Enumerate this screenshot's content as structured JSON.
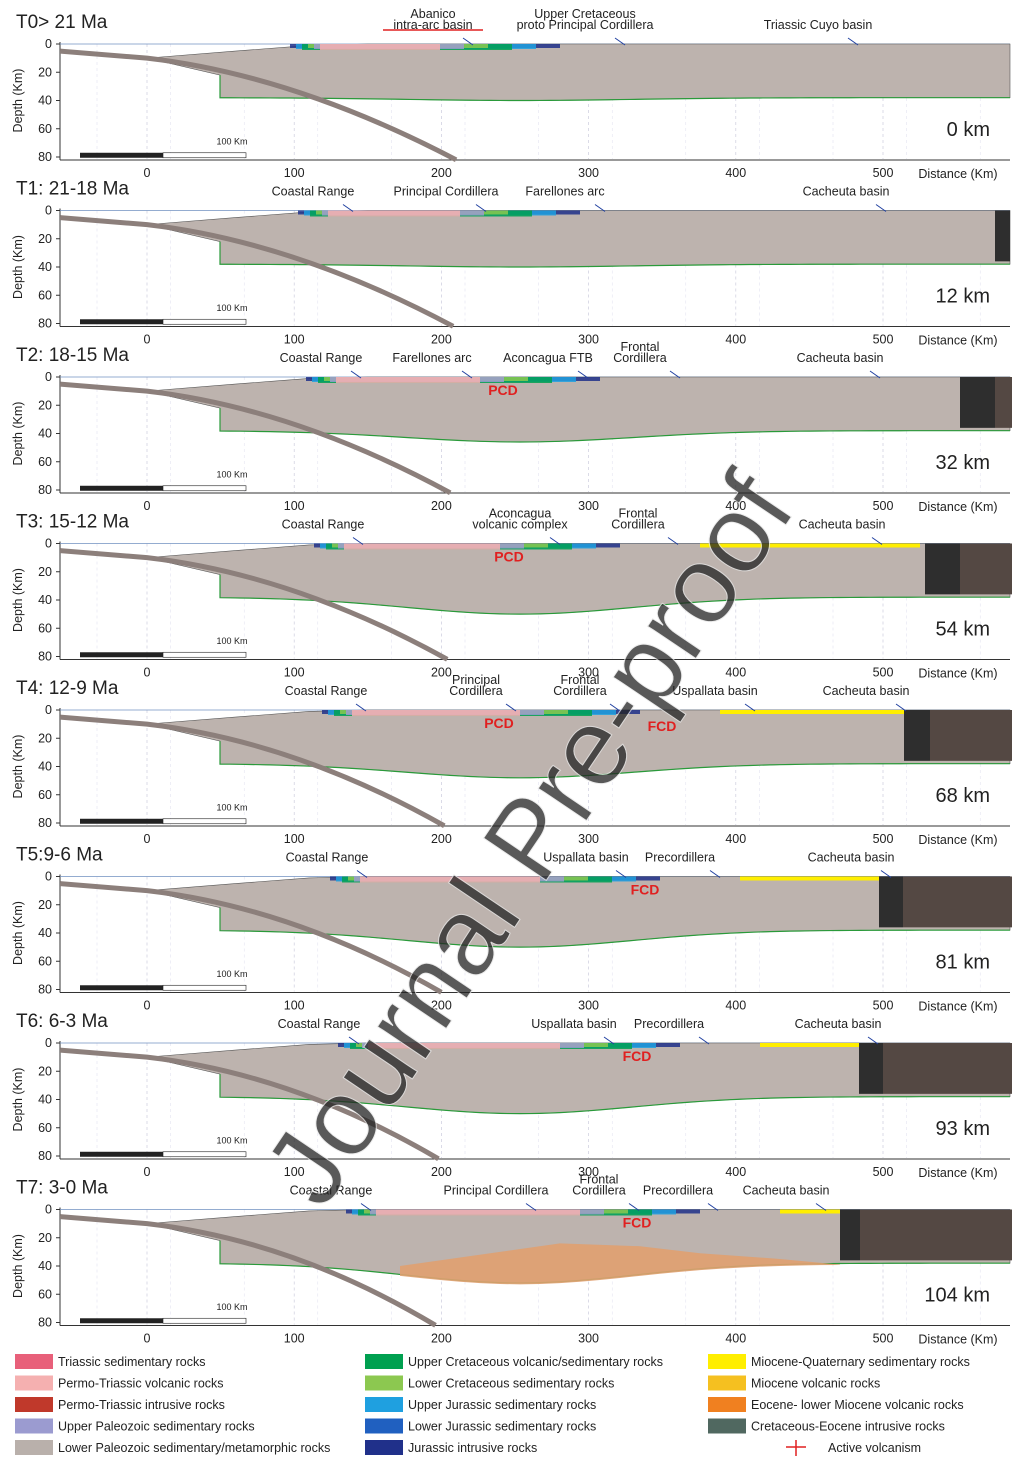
{
  "axes": {
    "depth_label": "Depth (Km)",
    "distance_label": "Distance (Km)",
    "x_ticks": [
      0,
      100,
      200,
      300,
      400,
      500
    ],
    "y_ticks": [
      0,
      20,
      40,
      60,
      80
    ],
    "scale_bar": "100 Km"
  },
  "panels": [
    {
      "title": "T0> 21 Ma",
      "shortening": "0 km",
      "labels": [
        {
          "lines": [
            "Abanico",
            "intra-arc basin"
          ]
        },
        {
          "lines": [
            "Upper Cretaceous",
            "proto Principal Cordillera"
          ]
        },
        {
          "lines": [
            "Triassic Cuyo basin"
          ]
        }
      ],
      "domains": []
    },
    {
      "title": "T1: 21-18 Ma",
      "shortening": "12 km",
      "labels": [
        {
          "lines": [
            "Coastal Range"
          ]
        },
        {
          "lines": [
            "Principal Cordillera"
          ]
        },
        {
          "lines": [
            "Farellones arc"
          ]
        },
        {
          "lines": [
            "Cacheuta basin"
          ]
        }
      ],
      "domains": []
    },
    {
      "title": "T2: 18-15 Ma",
      "shortening": "32 km",
      "labels": [
        {
          "lines": [
            "Coastal Range"
          ]
        },
        {
          "lines": [
            "Farellones arc"
          ]
        },
        {
          "lines": [
            "Aconcagua FTB"
          ]
        },
        {
          "lines": [
            "Frontal",
            "Cordillera"
          ]
        },
        {
          "lines": [
            "Cacheuta basin"
          ]
        }
      ],
      "domains": [
        "PCD"
      ]
    },
    {
      "title": "T3: 15-12 Ma",
      "shortening": "54 km",
      "labels": [
        {
          "lines": [
            "Coastal Range"
          ]
        },
        {
          "lines": [
            "Aconcagua",
            "volcanic complex"
          ]
        },
        {
          "lines": [
            "Frontal",
            "Cordillera"
          ]
        },
        {
          "lines": [
            "Cacheuta basin"
          ]
        }
      ],
      "domains": [
        "PCD"
      ]
    },
    {
      "title": "T4: 12-9 Ma",
      "shortening": "68 km",
      "labels": [
        {
          "lines": [
            "Coastal Range"
          ]
        },
        {
          "lines": [
            "Principal",
            "Cordillera"
          ]
        },
        {
          "lines": [
            "Frontal",
            "Cordillera"
          ]
        },
        {
          "lines": [
            "Uspallata basin"
          ]
        },
        {
          "lines": [
            "Cacheuta basin"
          ]
        }
      ],
      "domains": [
        "PCD",
        "FCD"
      ]
    },
    {
      "title": "T5:9-6 Ma",
      "shortening": "81 km",
      "labels": [
        {
          "lines": [
            "Coastal Range"
          ]
        },
        {
          "lines": [
            "Uspallata basin"
          ]
        },
        {
          "lines": [
            "Precordillera"
          ]
        },
        {
          "lines": [
            "Cacheuta basin"
          ]
        }
      ],
      "domains": [
        "FCD"
      ]
    },
    {
      "title": "T6: 6-3 Ma",
      "shortening": "93 km",
      "labels": [
        {
          "lines": [
            "Coastal Range"
          ]
        },
        {
          "lines": [
            "Uspallata basin"
          ]
        },
        {
          "lines": [
            "Precordillera"
          ]
        },
        {
          "lines": [
            "Cacheuta basin"
          ]
        }
      ],
      "domains": [
        "FCD"
      ]
    },
    {
      "title": "T7: 3-0 Ma",
      "shortening": "104 km",
      "labels": [
        {
          "lines": [
            "Coastal Range"
          ]
        },
        {
          "lines": [
            "Principal Cordillera"
          ]
        },
        {
          "lines": [
            "Frontal",
            "Cordillera"
          ]
        },
        {
          "lines": [
            "Precordillera"
          ]
        },
        {
          "lines": [
            "Cacheuta basin"
          ]
        }
      ],
      "domains": [
        "FCD"
      ]
    }
  ],
  "legend": [
    {
      "label": "Triassic sedimentary rocks",
      "color": "#e8607a"
    },
    {
      "label": "Permo-Triassic volcanic rocks",
      "color": "#f5b0b0"
    },
    {
      "label": "Permo-Triassic intrusive rocks",
      "color": "#c0392b"
    },
    {
      "label": "Upper Paleozoic sedimentary rocks",
      "color": "#9b9bd0"
    },
    {
      "label": "Lower Paleozoic sedimentary/metamorphic rocks",
      "color": "#b9b0ab"
    },
    {
      "label": "Upper Cretaceous volcanic/sedimentary rocks",
      "color": "#00a050"
    },
    {
      "label": "Lower Cretaceous sedimentary rocks",
      "color": "#8cc850"
    },
    {
      "label": "Upper Jurassic sedimentary rocks",
      "color": "#1fa0e0"
    },
    {
      "label": "Lower Jurassic sedimentary rocks",
      "color": "#2060c0"
    },
    {
      "label": "Jurassic intrusive rocks",
      "color": "#20308a"
    },
    {
      "label": "Miocene-Quaternary sedimentary rocks",
      "color": "#ffee00"
    },
    {
      "label": "Miocene volcanic rocks",
      "color": "#f5c020"
    },
    {
      "label": "Eocene- lower Miocene volcanic rocks",
      "color": "#f08020"
    },
    {
      "label": "Cretaceous-Eocene intrusive rocks",
      "color": "#506860"
    },
    {
      "label": "Active volcanism",
      "color": "#e02020"
    }
  ],
  "watermark": "Journal Pre-proof"
}
